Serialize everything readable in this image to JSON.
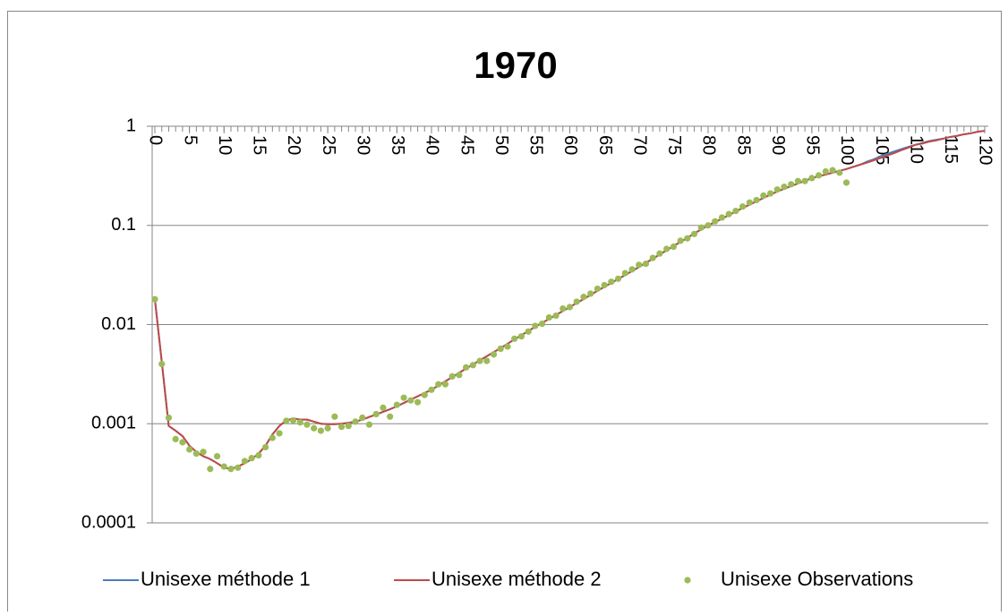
{
  "chart_data": {
    "type": "line",
    "title": "1970",
    "x": [
      0,
      1,
      2,
      3,
      4,
      5,
      6,
      7,
      8,
      9,
      10,
      11,
      12,
      13,
      14,
      15,
      16,
      17,
      18,
      19,
      20,
      21,
      22,
      23,
      24,
      25,
      26,
      27,
      28,
      29,
      30,
      31,
      32,
      33,
      34,
      35,
      36,
      37,
      38,
      39,
      40,
      41,
      42,
      43,
      44,
      45,
      46,
      47,
      48,
      49,
      50,
      51,
      52,
      53,
      54,
      55,
      56,
      57,
      58,
      59,
      60,
      61,
      62,
      63,
      64,
      65,
      66,
      67,
      68,
      69,
      70,
      71,
      72,
      73,
      74,
      75,
      76,
      77,
      78,
      79,
      80,
      81,
      82,
      83,
      84,
      85,
      86,
      87,
      88,
      89,
      90,
      91,
      92,
      93,
      94,
      95,
      96,
      97,
      98,
      99,
      100,
      101,
      102,
      103,
      104,
      105,
      106,
      107,
      108,
      109,
      110,
      111,
      112,
      113,
      114,
      115,
      116,
      117,
      118,
      119,
      120
    ],
    "xlim": [
      0,
      120
    ],
    "xticks": [
      0,
      5,
      10,
      15,
      20,
      25,
      30,
      35,
      40,
      45,
      50,
      55,
      60,
      65,
      70,
      75,
      80,
      85,
      90,
      95,
      100,
      105,
      110,
      115,
      120
    ],
    "ylim": [
      0.0001,
      1
    ],
    "yticks": [
      0.0001,
      0.001,
      0.01,
      0.1,
      1
    ],
    "log_y": true,
    "grid": true,
    "legend": "bottom",
    "series": [
      {
        "name": "Unisexe méthode 1",
        "color": "#4a7ebb",
        "kind": "line",
        "values": [
          0.018,
          0.0042,
          0.00095,
          0.00085,
          0.00075,
          0.0006,
          0.00052,
          0.00047,
          0.00044,
          0.0004,
          0.00036,
          0.00035,
          0.00037,
          0.0004,
          0.00044,
          0.0005,
          0.0006,
          0.00078,
          0.00095,
          0.00108,
          0.00113,
          0.0011,
          0.0011,
          0.00105,
          0.001,
          0.00099,
          0.00099,
          0.001,
          0.00102,
          0.00105,
          0.0011,
          0.00117,
          0.00124,
          0.00132,
          0.0014,
          0.0015,
          0.00162,
          0.00175,
          0.00189,
          0.00204,
          0.0022,
          0.00243,
          0.00268,
          0.00296,
          0.00326,
          0.0036,
          0.00396,
          0.00436,
          0.0048,
          0.00528,
          0.0058,
          0.0064,
          0.0071,
          0.0078,
          0.0086,
          0.0095,
          0.0104,
          0.0114,
          0.0125,
          0.0137,
          0.015,
          0.0165,
          0.0181,
          0.0199,
          0.0219,
          0.024,
          0.0263,
          0.0288,
          0.0316,
          0.0346,
          0.038,
          0.042,
          0.046,
          0.051,
          0.056,
          0.062,
          0.068,
          0.075,
          0.083,
          0.091,
          0.1,
          0.108,
          0.117,
          0.127,
          0.138,
          0.15,
          0.162,
          0.175,
          0.189,
          0.204,
          0.22,
          0.234,
          0.249,
          0.265,
          0.282,
          0.3,
          0.313,
          0.326,
          0.34,
          0.355,
          0.37,
          0.39,
          0.41,
          0.44,
          0.465,
          0.5,
          0.53,
          0.56,
          0.59,
          0.62,
          0.65,
          0.68,
          0.71,
          0.73,
          0.75,
          0.78,
          0.8,
          0.83,
          0.85,
          0.88,
          0.9
        ]
      },
      {
        "name": "Unisexe méthode 2",
        "color": "#be4b48",
        "kind": "line",
        "values": [
          0.018,
          0.0042,
          0.00095,
          0.00085,
          0.00075,
          0.0006,
          0.00052,
          0.00047,
          0.00044,
          0.0004,
          0.00036,
          0.00035,
          0.00037,
          0.0004,
          0.00044,
          0.0005,
          0.0006,
          0.00078,
          0.00095,
          0.00108,
          0.00113,
          0.0011,
          0.0011,
          0.00105,
          0.001,
          0.00099,
          0.00099,
          0.001,
          0.00102,
          0.00105,
          0.0011,
          0.00117,
          0.00124,
          0.00132,
          0.0014,
          0.0015,
          0.00162,
          0.00175,
          0.00189,
          0.00204,
          0.0022,
          0.00243,
          0.00268,
          0.00296,
          0.00326,
          0.0036,
          0.00396,
          0.00436,
          0.0048,
          0.00528,
          0.0058,
          0.0064,
          0.0071,
          0.0078,
          0.0086,
          0.0095,
          0.0104,
          0.0114,
          0.0125,
          0.0137,
          0.015,
          0.0165,
          0.0181,
          0.0199,
          0.0219,
          0.024,
          0.0263,
          0.0288,
          0.0316,
          0.0346,
          0.038,
          0.042,
          0.046,
          0.051,
          0.056,
          0.062,
          0.068,
          0.075,
          0.083,
          0.091,
          0.1,
          0.108,
          0.117,
          0.127,
          0.138,
          0.15,
          0.162,
          0.175,
          0.189,
          0.204,
          0.22,
          0.234,
          0.249,
          0.265,
          0.282,
          0.3,
          0.313,
          0.326,
          0.34,
          0.355,
          0.37,
          0.39,
          0.41,
          0.43,
          0.455,
          0.48,
          0.51,
          0.54,
          0.575,
          0.61,
          0.65,
          0.67,
          0.7,
          0.72,
          0.75,
          0.78,
          0.8,
          0.83,
          0.85,
          0.88,
          0.9
        ]
      },
      {
        "name": "Unisexe Observations",
        "color": "#9bbb59",
        "kind": "scatter",
        "values": [
          0.018,
          0.004,
          0.00115,
          0.0007,
          0.00065,
          0.00055,
          0.0005,
          0.00052,
          0.00035,
          0.00047,
          0.00037,
          0.00035,
          0.00036,
          0.00042,
          0.00045,
          0.00048,
          0.00058,
          0.00072,
          0.0008,
          0.00107,
          0.00108,
          0.00103,
          0.00098,
          0.0009,
          0.00085,
          0.0009,
          0.00118,
          0.00093,
          0.00095,
          0.00105,
          0.00115,
          0.00098,
          0.00125,
          0.00145,
          0.00118,
          0.00155,
          0.00183,
          0.00172,
          0.00165,
          0.00195,
          0.0022,
          0.0025,
          0.0025,
          0.003,
          0.0031,
          0.0037,
          0.0039,
          0.0043,
          0.0043,
          0.005,
          0.0057,
          0.006,
          0.0072,
          0.0076,
          0.0085,
          0.0097,
          0.0102,
          0.0118,
          0.0123,
          0.0145,
          0.015,
          0.017,
          0.019,
          0.0205,
          0.023,
          0.025,
          0.027,
          0.029,
          0.033,
          0.036,
          0.04,
          0.041,
          0.047,
          0.052,
          0.058,
          0.061,
          0.07,
          0.074,
          0.082,
          0.095,
          0.1,
          0.11,
          0.12,
          0.13,
          0.14,
          0.155,
          0.17,
          0.18,
          0.2,
          0.21,
          0.23,
          0.245,
          0.26,
          0.28,
          0.28,
          0.3,
          0.32,
          0.35,
          0.36,
          0.34,
          0.27,
          null,
          null,
          null,
          null,
          null,
          null,
          null,
          null,
          null,
          null,
          null,
          null,
          null,
          null,
          null,
          null,
          null,
          null,
          null,
          null
        ]
      }
    ]
  }
}
